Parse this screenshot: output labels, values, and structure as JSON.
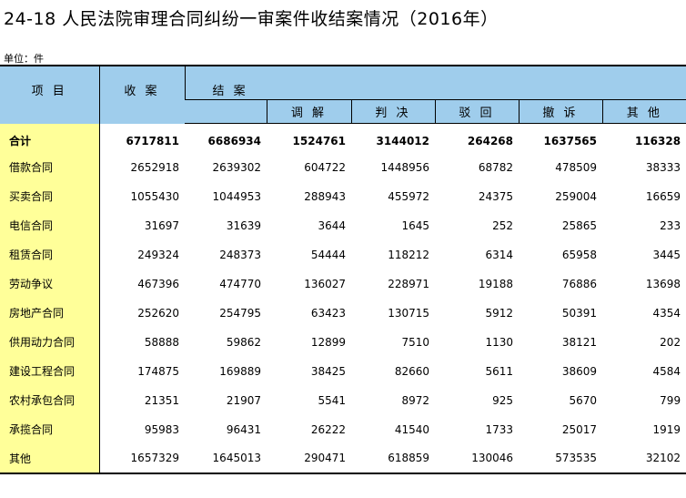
{
  "title": "24-18   人民法院审理合同纠纷一审案件收结案情况（2016年）",
  "unit": "单位：件",
  "headers": {
    "item": "项 目",
    "received": "收 案",
    "closed": "结 案",
    "mediation": "调 解",
    "judgment": "判 决",
    "rejected": "驳 回",
    "withdrawn": "撤 诉",
    "other": "其 他"
  },
  "rows": [
    {
      "name": "合计",
      "values": [
        "6717811",
        "6686934",
        "1524761",
        "3144012",
        "264268",
        "1637565",
        "116328"
      ]
    },
    {
      "name": "借款合同",
      "values": [
        "2652918",
        "2639302",
        "604722",
        "1448956",
        "68782",
        "478509",
        "38333"
      ]
    },
    {
      "name": "买卖合同",
      "values": [
        "1055430",
        "1044953",
        "288943",
        "455972",
        "24375",
        "259004",
        "16659"
      ]
    },
    {
      "name": "电信合同",
      "values": [
        "31697",
        "31639",
        "3644",
        "1645",
        "252",
        "25865",
        "233"
      ]
    },
    {
      "name": "租赁合同",
      "values": [
        "249324",
        "248373",
        "54444",
        "118212",
        "6314",
        "65958",
        "3445"
      ]
    },
    {
      "name": "劳动争议",
      "values": [
        "467396",
        "474770",
        "136027",
        "228971",
        "19188",
        "76886",
        "13698"
      ]
    },
    {
      "name": "房地产合同",
      "values": [
        "252620",
        "254795",
        "63423",
        "130715",
        "5912",
        "50391",
        "4354"
      ]
    },
    {
      "name": "供用动力合同",
      "values": [
        "58888",
        "59862",
        "12899",
        "7510",
        "1130",
        "38121",
        "202"
      ]
    },
    {
      "name": "建设工程合同",
      "values": [
        "174875",
        "169889",
        "38425",
        "82660",
        "5611",
        "38609",
        "4584"
      ]
    },
    {
      "name": "农村承包合同",
      "values": [
        "21351",
        "21907",
        "5541",
        "8972",
        "925",
        "5670",
        "799"
      ]
    },
    {
      "name": "承揽合同",
      "values": [
        "95983",
        "96431",
        "26222",
        "41540",
        "1733",
        "25017",
        "1919"
      ]
    },
    {
      "name": "其他",
      "values": [
        "1657329",
        "1645013",
        "290471",
        "618859",
        "130046",
        "573535",
        "32102"
      ]
    }
  ]
}
